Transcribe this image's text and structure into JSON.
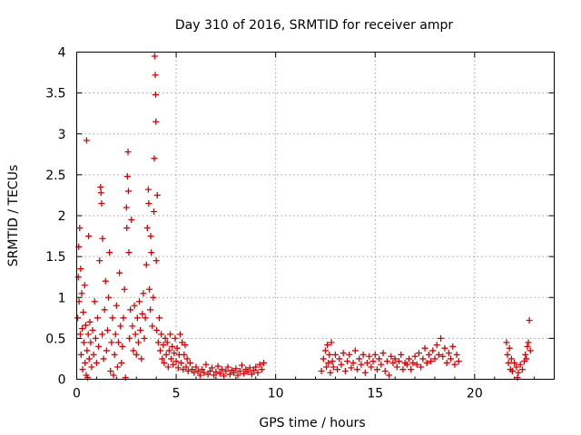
{
  "chart_data": {
    "type": "scatter",
    "title": "Day 310 of 2016, SRMTID for receiver ampr",
    "xlabel": "GPS time / hours",
    "ylabel": "SRMTID / TECUs",
    "xlim": [
      0,
      24
    ],
    "ylim": [
      0,
      4
    ],
    "xticks": [
      0,
      5,
      10,
      15,
      20
    ],
    "yticks": [
      0,
      0.5,
      1,
      1.5,
      2,
      2.5,
      3,
      3.5,
      4
    ],
    "xtick_labels": [
      "0",
      "5",
      "10",
      "15",
      "20"
    ],
    "ytick_labels": [
      "0",
      "0.5",
      "1",
      "1.5",
      "2",
      "2.5",
      "3",
      "3.5",
      "4"
    ],
    "grid": true,
    "legend": "none",
    "marker": "plus",
    "color": "#dd0000",
    "series": [
      {
        "name": "SRMTID",
        "points": [
          [
            0.05,
            0.75
          ],
          [
            0.08,
            1.25
          ],
          [
            0.1,
            1.62
          ],
          [
            0.12,
            0.95
          ],
          [
            0.15,
            1.85
          ],
          [
            0.18,
            0.55
          ],
          [
            0.2,
            1.35
          ],
          [
            0.22,
            0.3
          ],
          [
            0.25,
            1.05
          ],
          [
            0.28,
            0.62
          ],
          [
            0.3,
            0.12
          ],
          [
            0.33,
            0.82
          ],
          [
            0.36,
            0.45
          ],
          [
            0.4,
            1.15
          ],
          [
            0.42,
            0.2
          ],
          [
            0.45,
            0.66
          ],
          [
            0.48,
            0.05
          ],
          [
            0.5,
            2.92
          ],
          [
            0.52,
            0.35
          ],
          [
            0.55,
            0.02
          ],
          [
            0.58,
            0.55
          ],
          [
            0.6,
            1.75
          ],
          [
            0.63,
            0.25
          ],
          [
            0.66,
            0.7
          ],
          [
            0.7,
            0.45
          ],
          [
            0.75,
            0.15
          ],
          [
            0.8,
            0.6
          ],
          [
            0.85,
            0.3
          ],
          [
            0.9,
            0.95
          ],
          [
            0.95,
            0.5
          ],
          [
            1.0,
            0.2
          ],
          [
            1.05,
            0.75
          ],
          [
            1.1,
            0.4
          ],
          [
            1.15,
            1.45
          ],
          [
            1.2,
            2.35
          ],
          [
            1.22,
            2.28
          ],
          [
            1.25,
            2.15
          ],
          [
            1.28,
            0.55
          ],
          [
            1.3,
            1.72
          ],
          [
            1.35,
            0.25
          ],
          [
            1.4,
            0.85
          ],
          [
            1.45,
            1.2
          ],
          [
            1.5,
            0.35
          ],
          [
            1.55,
            0.6
          ],
          [
            1.6,
            1.0
          ],
          [
            1.65,
            1.55
          ],
          [
            1.7,
            0.1
          ],
          [
            1.75,
            0.45
          ],
          [
            1.8,
            0.75
          ],
          [
            1.85,
            0.05
          ],
          [
            1.9,
            0.3
          ],
          [
            1.95,
            0.55
          ],
          [
            2.0,
            0.9
          ],
          [
            2.05,
            0.15
          ],
          [
            2.1,
            0.45
          ],
          [
            2.15,
            1.3
          ],
          [
            2.2,
            0.65
          ],
          [
            2.25,
            0.2
          ],
          [
            2.3,
            0.4
          ],
          [
            2.35,
            0.75
          ],
          [
            2.4,
            1.1
          ],
          [
            2.45,
            0.02
          ],
          [
            2.5,
            2.1
          ],
          [
            2.52,
            1.85
          ],
          [
            2.55,
            2.48
          ],
          [
            2.58,
            2.78
          ],
          [
            2.6,
            2.3
          ],
          [
            2.62,
            1.55
          ],
          [
            2.65,
            0.5
          ],
          [
            2.7,
            0.85
          ],
          [
            2.75,
            1.95
          ],
          [
            2.8,
            0.65
          ],
          [
            2.85,
            0.35
          ],
          [
            2.9,
            0.9
          ],
          [
            2.95,
            0.55
          ],
          [
            3.0,
            0.3
          ],
          [
            3.05,
            0.75
          ],
          [
            3.1,
            0.45
          ],
          [
            3.15,
            0.95
          ],
          [
            3.2,
            0.6
          ],
          [
            3.25,
            0.25
          ],
          [
            3.3,
            0.8
          ],
          [
            3.35,
            1.05
          ],
          [
            3.4,
            0.5
          ],
          [
            3.45,
            0.75
          ],
          [
            3.5,
            1.4
          ],
          [
            3.55,
            1.85
          ],
          [
            3.6,
            2.32
          ],
          [
            3.62,
            2.15
          ],
          [
            3.65,
            1.1
          ],
          [
            3.7,
            0.85
          ],
          [
            3.72,
            1.75
          ],
          [
            3.75,
            1.55
          ],
          [
            3.8,
            0.65
          ],
          [
            3.85,
            1.0
          ],
          [
            3.88,
            2.05
          ],
          [
            3.9,
            2.7
          ],
          [
            3.92,
            3.95
          ],
          [
            3.95,
            3.72
          ],
          [
            3.97,
            3.48
          ],
          [
            3.98,
            3.15
          ],
          [
            4.0,
            1.45
          ],
          [
            4.02,
            0.6
          ],
          [
            4.05,
            2.25
          ],
          [
            4.1,
            0.45
          ],
          [
            4.15,
            0.75
          ],
          [
            4.2,
            0.35
          ],
          [
            4.25,
            0.55
          ],
          [
            4.3,
            0.25
          ],
          [
            4.35,
            0.42
          ],
          [
            4.4,
            0.2
          ],
          [
            4.45,
            0.5
          ],
          [
            4.5,
            0.3
          ],
          [
            4.55,
            0.45
          ],
          [
            4.6,
            0.15
          ],
          [
            4.65,
            0.35
          ],
          [
            4.7,
            0.55
          ],
          [
            4.75,
            0.25
          ],
          [
            4.8,
            0.4
          ],
          [
            4.85,
            0.18
          ],
          [
            4.9,
            0.32
          ],
          [
            4.95,
            0.5
          ],
          [
            5.0,
            0.22
          ],
          [
            5.05,
            0.38
          ],
          [
            5.1,
            0.14
          ],
          [
            5.15,
            0.3
          ],
          [
            5.2,
            0.55
          ],
          [
            5.25,
            0.2
          ],
          [
            5.3,
            0.45
          ],
          [
            5.35,
            0.12
          ],
          [
            5.4,
            0.3
          ],
          [
            5.45,
            0.42
          ],
          [
            5.5,
            0.15
          ],
          [
            5.55,
            0.25
          ],
          [
            5.6,
            0.1
          ],
          [
            5.7,
            0.2
          ],
          [
            5.8,
            0.12
          ],
          [
            5.9,
            0.08
          ],
          [
            6.0,
            0.15
          ],
          [
            6.1,
            0.1
          ],
          [
            6.2,
            0.05
          ],
          [
            6.3,
            0.12
          ],
          [
            6.4,
            0.08
          ],
          [
            6.5,
            0.18
          ],
          [
            6.6,
            0.06
          ],
          [
            6.7,
            0.1
          ],
          [
            6.8,
            0.14
          ],
          [
            6.9,
            0.05
          ],
          [
            7.0,
            0.09
          ],
          [
            7.1,
            0.16
          ],
          [
            7.2,
            0.07
          ],
          [
            7.3,
            0.12
          ],
          [
            7.4,
            0.04
          ],
          [
            7.5,
            0.1
          ],
          [
            7.6,
            0.15
          ],
          [
            7.7,
            0.06
          ],
          [
            7.8,
            0.11
          ],
          [
            7.9,
            0.08
          ],
          [
            8.0,
            0.13
          ],
          [
            8.1,
            0.05
          ],
          [
            8.2,
            0.1
          ],
          [
            8.3,
            0.17
          ],
          [
            8.4,
            0.07
          ],
          [
            8.5,
            0.12
          ],
          [
            8.6,
            0.09
          ],
          [
            8.7,
            0.14
          ],
          [
            8.8,
            0.06
          ],
          [
            8.9,
            0.11
          ],
          [
            9.0,
            0.15
          ],
          [
            9.1,
            0.08
          ],
          [
            9.2,
            0.18
          ],
          [
            9.3,
            0.12
          ],
          [
            9.4,
            0.2
          ],
          [
            12.3,
            0.1
          ],
          [
            12.4,
            0.25
          ],
          [
            12.5,
            0.35
          ],
          [
            12.55,
            0.15
          ],
          [
            12.6,
            0.42
          ],
          [
            12.65,
            0.2
          ],
          [
            12.7,
            0.3
          ],
          [
            12.75,
            0.08
          ],
          [
            12.8,
            0.45
          ],
          [
            12.85,
            0.22
          ],
          [
            12.9,
            0.15
          ],
          [
            13.0,
            0.3
          ],
          [
            13.1,
            0.12
          ],
          [
            13.2,
            0.25
          ],
          [
            13.3,
            0.18
          ],
          [
            13.4,
            0.32
          ],
          [
            13.5,
            0.1
          ],
          [
            13.6,
            0.22
          ],
          [
            13.7,
            0.3
          ],
          [
            13.8,
            0.14
          ],
          [
            13.9,
            0.2
          ],
          [
            14.0,
            0.35
          ],
          [
            14.1,
            0.12
          ],
          [
            14.2,
            0.25
          ],
          [
            14.3,
            0.18
          ],
          [
            14.4,
            0.3
          ],
          [
            14.5,
            0.08
          ],
          [
            14.6,
            0.2
          ],
          [
            14.7,
            0.28
          ],
          [
            14.8,
            0.15
          ],
          [
            14.9,
            0.22
          ],
          [
            15.0,
            0.3
          ],
          [
            15.1,
            0.12
          ],
          [
            15.2,
            0.25
          ],
          [
            15.3,
            0.18
          ],
          [
            15.4,
            0.32
          ],
          [
            15.5,
            0.1
          ],
          [
            15.6,
            0.22
          ],
          [
            15.7,
            0.05
          ],
          [
            15.8,
            0.28
          ],
          [
            15.9,
            0.2
          ],
          [
            16.0,
            0.25
          ],
          [
            16.1,
            0.15
          ],
          [
            16.2,
            0.22
          ],
          [
            16.3,
            0.3
          ],
          [
            16.4,
            0.12
          ],
          [
            16.5,
            0.2
          ],
          [
            16.6,
            0.18
          ],
          [
            16.7,
            0.25
          ],
          [
            16.8,
            0.12
          ],
          [
            16.9,
            0.2
          ],
          [
            17.0,
            0.28
          ],
          [
            17.1,
            0.18
          ],
          [
            17.2,
            0.32
          ],
          [
            17.3,
            0.15
          ],
          [
            17.4,
            0.25
          ],
          [
            17.5,
            0.38
          ],
          [
            17.6,
            0.2
          ],
          [
            17.7,
            0.3
          ],
          [
            17.8,
            0.22
          ],
          [
            17.9,
            0.35
          ],
          [
            18.0,
            0.25
          ],
          [
            18.1,
            0.42
          ],
          [
            18.2,
            0.3
          ],
          [
            18.3,
            0.5
          ],
          [
            18.4,
            0.28
          ],
          [
            18.5,
            0.38
          ],
          [
            18.6,
            0.2
          ],
          [
            18.7,
            0.32
          ],
          [
            18.8,
            0.25
          ],
          [
            18.9,
            0.4
          ],
          [
            19.0,
            0.18
          ],
          [
            19.1,
            0.3
          ],
          [
            19.2,
            0.22
          ],
          [
            21.6,
            0.45
          ],
          [
            21.65,
            0.3
          ],
          [
            21.7,
            0.2
          ],
          [
            21.75,
            0.38
          ],
          [
            21.8,
            0.12
          ],
          [
            21.85,
            0.25
          ],
          [
            21.9,
            0.1
          ],
          [
            22.0,
            0.2
          ],
          [
            22.1,
            0.15
          ],
          [
            22.15,
            0.02
          ],
          [
            22.2,
            0.08
          ],
          [
            22.3,
            0.18
          ],
          [
            22.4,
            0.12
          ],
          [
            22.5,
            0.22
          ],
          [
            22.55,
            0.3
          ],
          [
            22.6,
            0.25
          ],
          [
            22.65,
            0.4
          ],
          [
            22.7,
            0.45
          ],
          [
            22.75,
            0.72
          ],
          [
            22.8,
            0.35
          ]
        ]
      }
    ],
    "extra_notes": "Dense +-marker scatter; points cluster near 0-0.5 TECU with gaps between ~9.5-12.3 h and ~19.3-21.5 h."
  }
}
